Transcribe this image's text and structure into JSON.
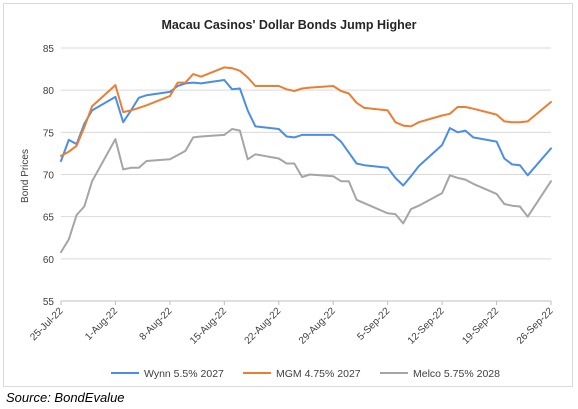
{
  "chart_data": {
    "type": "line",
    "title": "Macau Casinos' Dollar Bonds Jump Higher",
    "xlabel": "",
    "ylabel": "Bond Prices",
    "ylim": [
      55,
      85
    ],
    "yticks": [
      55,
      60,
      65,
      70,
      75,
      80,
      85
    ],
    "x_ticks": [
      "25-Jul-22",
      "1-Aug-22",
      "8-Aug-22",
      "15-Aug-22",
      "22-Aug-22",
      "29-Aug-22",
      "5-Sep-22",
      "12-Sep-22",
      "19-Sep-22",
      "26-Sep-22"
    ],
    "x_range": [
      "2022-07-25",
      "2022-09-26"
    ],
    "legend_position": "bottom",
    "grid": "horizontal",
    "series": [
      {
        "name": "Wynn 5.5% 2027",
        "color": "#4a8ee6",
        "points": [
          [
            "2022-07-25",
            71.6
          ],
          [
            "2022-07-26",
            74.1
          ],
          [
            "2022-07-27",
            73.6
          ],
          [
            "2022-07-28",
            76.0
          ],
          [
            "2022-07-29",
            77.6
          ],
          [
            "2022-08-01",
            79.2
          ],
          [
            "2022-08-02",
            76.2
          ],
          [
            "2022-08-03",
            77.6
          ],
          [
            "2022-08-04",
            79.1
          ],
          [
            "2022-08-05",
            79.4
          ],
          [
            "2022-08-08",
            79.8
          ],
          [
            "2022-08-09",
            80.5
          ],
          [
            "2022-08-10",
            80.8
          ],
          [
            "2022-08-11",
            80.9
          ],
          [
            "2022-08-12",
            80.8
          ],
          [
            "2022-08-15",
            81.2
          ],
          [
            "2022-08-16",
            80.1
          ],
          [
            "2022-08-17",
            80.2
          ],
          [
            "2022-08-18",
            77.6
          ],
          [
            "2022-08-19",
            75.7
          ],
          [
            "2022-08-22",
            75.4
          ],
          [
            "2022-08-23",
            74.5
          ],
          [
            "2022-08-24",
            74.4
          ],
          [
            "2022-08-25",
            74.7
          ],
          [
            "2022-08-26",
            74.7
          ],
          [
            "2022-08-29",
            74.7
          ],
          [
            "2022-08-30",
            73.9
          ],
          [
            "2022-08-31",
            72.6
          ],
          [
            "2022-09-01",
            71.3
          ],
          [
            "2022-09-02",
            71.1
          ],
          [
            "2022-09-05",
            70.8
          ],
          [
            "2022-09-06",
            69.6
          ],
          [
            "2022-09-07",
            68.7
          ],
          [
            "2022-09-08",
            69.8
          ],
          [
            "2022-09-09",
            71.0
          ],
          [
            "2022-09-12",
            73.5
          ],
          [
            "2022-09-13",
            75.5
          ],
          [
            "2022-09-14",
            75.0
          ],
          [
            "2022-09-15",
            75.2
          ],
          [
            "2022-09-16",
            74.4
          ],
          [
            "2022-09-19",
            73.9
          ],
          [
            "2022-09-20",
            71.9
          ],
          [
            "2022-09-21",
            71.2
          ],
          [
            "2022-09-22",
            71.1
          ],
          [
            "2022-09-23",
            69.9
          ],
          [
            "2022-09-26",
            73.1
          ]
        ]
      },
      {
        "name": "MGM 4.75% 2027",
        "color": "#ed7d31",
        "points": [
          [
            "2022-07-25",
            72.2
          ],
          [
            "2022-07-26",
            72.7
          ],
          [
            "2022-07-27",
            73.4
          ],
          [
            "2022-07-28",
            75.6
          ],
          [
            "2022-07-29",
            78.1
          ],
          [
            "2022-08-01",
            80.6
          ],
          [
            "2022-08-02",
            77.4
          ],
          [
            "2022-08-03",
            77.6
          ],
          [
            "2022-08-04",
            77.9
          ],
          [
            "2022-08-05",
            78.2
          ],
          [
            "2022-08-08",
            79.3
          ],
          [
            "2022-08-09",
            80.9
          ],
          [
            "2022-08-10",
            80.9
          ],
          [
            "2022-08-11",
            81.9
          ],
          [
            "2022-08-12",
            81.6
          ],
          [
            "2022-08-15",
            82.7
          ],
          [
            "2022-08-16",
            82.6
          ],
          [
            "2022-08-17",
            82.3
          ],
          [
            "2022-08-18",
            81.5
          ],
          [
            "2022-08-19",
            80.5
          ],
          [
            "2022-08-22",
            80.5
          ],
          [
            "2022-08-23",
            80.1
          ],
          [
            "2022-08-24",
            79.9
          ],
          [
            "2022-08-25",
            80.2
          ],
          [
            "2022-08-26",
            80.3
          ],
          [
            "2022-08-29",
            80.5
          ],
          [
            "2022-08-30",
            79.9
          ],
          [
            "2022-08-31",
            79.6
          ],
          [
            "2022-09-01",
            78.5
          ],
          [
            "2022-09-02",
            77.9
          ],
          [
            "2022-09-05",
            77.6
          ],
          [
            "2022-09-06",
            76.2
          ],
          [
            "2022-09-07",
            75.8
          ],
          [
            "2022-09-08",
            75.7
          ],
          [
            "2022-09-09",
            76.2
          ],
          [
            "2022-09-12",
            77.0
          ],
          [
            "2022-09-13",
            77.2
          ],
          [
            "2022-09-14",
            78.0
          ],
          [
            "2022-09-15",
            78.0
          ],
          [
            "2022-09-16",
            77.8
          ],
          [
            "2022-09-19",
            77.1
          ],
          [
            "2022-09-20",
            76.3
          ],
          [
            "2022-09-21",
            76.2
          ],
          [
            "2022-09-22",
            76.2
          ],
          [
            "2022-09-23",
            76.3
          ],
          [
            "2022-09-26",
            78.6
          ]
        ]
      },
      {
        "name": "Melco 5.75% 2028",
        "color": "#a5a5a5",
        "points": [
          [
            "2022-07-25",
            60.8
          ],
          [
            "2022-07-26",
            62.3
          ],
          [
            "2022-07-27",
            65.2
          ],
          [
            "2022-07-28",
            66.2
          ],
          [
            "2022-07-29",
            69.2
          ],
          [
            "2022-08-01",
            74.2
          ],
          [
            "2022-08-02",
            70.6
          ],
          [
            "2022-08-03",
            70.8
          ],
          [
            "2022-08-04",
            70.8
          ],
          [
            "2022-08-05",
            71.6
          ],
          [
            "2022-08-08",
            71.8
          ],
          [
            "2022-08-09",
            72.3
          ],
          [
            "2022-08-10",
            72.8
          ],
          [
            "2022-08-11",
            74.4
          ],
          [
            "2022-08-12",
            74.5
          ],
          [
            "2022-08-15",
            74.7
          ],
          [
            "2022-08-16",
            75.4
          ],
          [
            "2022-08-17",
            75.2
          ],
          [
            "2022-08-18",
            71.8
          ],
          [
            "2022-08-19",
            72.4
          ],
          [
            "2022-08-22",
            71.9
          ],
          [
            "2022-08-23",
            71.3
          ],
          [
            "2022-08-24",
            71.3
          ],
          [
            "2022-08-25",
            69.7
          ],
          [
            "2022-08-26",
            70.0
          ],
          [
            "2022-08-29",
            69.8
          ],
          [
            "2022-08-30",
            69.2
          ],
          [
            "2022-08-31",
            69.2
          ],
          [
            "2022-09-01",
            67.0
          ],
          [
            "2022-09-02",
            66.6
          ],
          [
            "2022-09-05",
            65.4
          ],
          [
            "2022-09-06",
            65.3
          ],
          [
            "2022-09-07",
            64.2
          ],
          [
            "2022-09-08",
            65.9
          ],
          [
            "2022-09-09",
            66.3
          ],
          [
            "2022-09-12",
            67.8
          ],
          [
            "2022-09-13",
            69.9
          ],
          [
            "2022-09-14",
            69.6
          ],
          [
            "2022-09-15",
            69.4
          ],
          [
            "2022-09-16",
            68.9
          ],
          [
            "2022-09-19",
            67.7
          ],
          [
            "2022-09-20",
            66.5
          ],
          [
            "2022-09-21",
            66.3
          ],
          [
            "2022-09-22",
            66.2
          ],
          [
            "2022-09-23",
            65.0
          ],
          [
            "2022-09-26",
            69.2
          ]
        ]
      }
    ]
  },
  "source": "Source: BondEvalue"
}
